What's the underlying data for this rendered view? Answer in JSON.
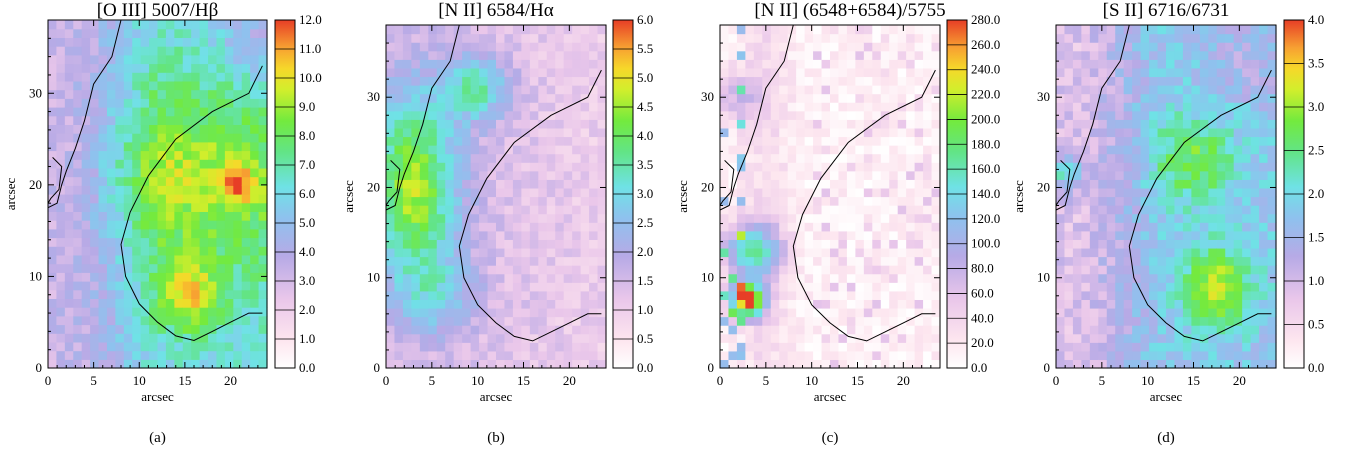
{
  "figure": {
    "panels": [
      {
        "caption": "(a)"
      },
      {
        "caption": "(b)"
      },
      {
        "caption": "(c)"
      },
      {
        "caption": "(d)"
      }
    ]
  },
  "chart_data": [
    {
      "type": "heatmap",
      "title": "[O III] 5007/Hβ",
      "xlabel": "arcsec",
      "ylabel": "arcsec",
      "xlim": [
        0,
        24
      ],
      "ylim": [
        0,
        38
      ],
      "x_ticks": [
        "0",
        "5",
        "10",
        "15",
        "20"
      ],
      "y_ticks": [
        "0",
        "10",
        "20",
        "30"
      ],
      "colorbar": {
        "range": [
          0,
          12
        ],
        "tick_labels": [
          "0.0",
          "1.0",
          "2.0",
          "3.0",
          "4.0",
          "5.0",
          "6.0",
          "7.0",
          "8.0",
          "9.0",
          "10.0",
          "11.0",
          "12.0"
        ]
      },
      "features": [
        {
          "x": 15.5,
          "y": 8,
          "value": 11
        },
        {
          "x": 21,
          "y": 20,
          "value": 11
        }
      ]
    },
    {
      "type": "heatmap",
      "title": "[N II] 6584/Hα",
      "xlabel": "arcsec",
      "ylabel": "arcsec",
      "xlim": [
        0,
        24
      ],
      "ylim": [
        0,
        38
      ],
      "x_ticks": [
        "0",
        "5",
        "10",
        "15",
        "20"
      ],
      "y_ticks": [
        "0",
        "10",
        "20",
        "30"
      ],
      "colorbar": {
        "range": [
          0,
          6
        ],
        "tick_labels": [
          "0.0",
          "0.5",
          "1.0",
          "1.5",
          "2.0",
          "2.5",
          "3.0",
          "3.5",
          "4.0",
          "4.5",
          "5.0",
          "5.5",
          "6.0"
        ]
      },
      "features": [
        {
          "x": 3,
          "y": 20,
          "value": 4.8
        }
      ]
    },
    {
      "type": "heatmap",
      "title": "[N II] (6548+6584)/5755",
      "xlabel": "arcsec",
      "ylabel": "arcsec",
      "xlim": [
        0,
        24
      ],
      "ylim": [
        0,
        38
      ],
      "x_ticks": [
        "0",
        "5",
        "10",
        "15",
        "20"
      ],
      "y_ticks": [
        "0",
        "10",
        "20",
        "30"
      ],
      "colorbar": {
        "range": [
          0,
          280
        ],
        "tick_labels": [
          "0.0",
          "20.0",
          "40.0",
          "60.0",
          "80.0",
          "100.0",
          "120.0",
          "140.0",
          "160.0",
          "180.0",
          "200.0",
          "220.0",
          "240.0",
          "260.0",
          "280.0"
        ]
      },
      "features": [
        {
          "x": 3,
          "y": 7.5,
          "value": 270
        }
      ]
    },
    {
      "type": "heatmap",
      "title": "[S II] 6716/6731",
      "xlabel": "arcsec",
      "ylabel": "arcsec",
      "xlim": [
        0,
        24
      ],
      "ylim": [
        0,
        38
      ],
      "x_ticks": [
        "0",
        "5",
        "10",
        "15",
        "20"
      ],
      "y_ticks": [
        "0",
        "10",
        "20",
        "30"
      ],
      "colorbar": {
        "range": [
          0,
          4
        ],
        "tick_labels": [
          "0.0",
          "0.5",
          "1.0",
          "1.5",
          "2.0",
          "2.5",
          "3.0",
          "3.5",
          "4.0"
        ]
      },
      "features": [
        {
          "x": 17.5,
          "y": 9,
          "value": 3.8
        }
      ]
    }
  ]
}
